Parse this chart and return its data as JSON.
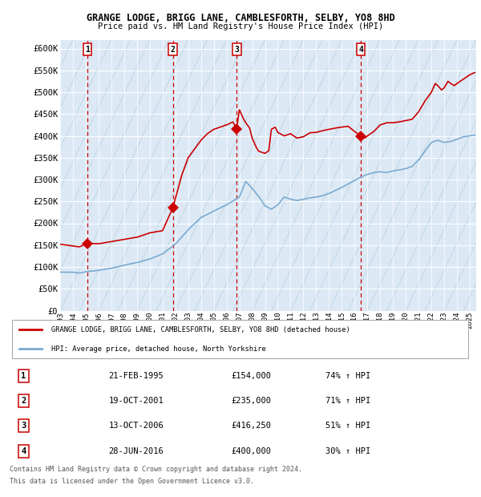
{
  "title1": "GRANGE LODGE, BRIGG LANE, CAMBLESFORTH, SELBY, YO8 8HD",
  "title2": "Price paid vs. HM Land Registry's House Price Index (HPI)",
  "bg_color": "#dce9f5",
  "hatch_color": "#c4d8ea",
  "ylim": [
    0,
    620000
  ],
  "yticks": [
    0,
    50000,
    100000,
    150000,
    200000,
    250000,
    300000,
    350000,
    400000,
    450000,
    500000,
    550000,
    600000
  ],
  "ytick_labels": [
    "£0",
    "£50K",
    "£100K",
    "£150K",
    "£200K",
    "£250K",
    "£300K",
    "£350K",
    "£400K",
    "£450K",
    "£500K",
    "£550K",
    "£600K"
  ],
  "xlim_start": 1993.0,
  "xlim_end": 2025.5,
  "xtick_years": [
    1993,
    1994,
    1995,
    1996,
    1997,
    1998,
    1999,
    2000,
    2001,
    2002,
    2003,
    2004,
    2005,
    2006,
    2007,
    2008,
    2009,
    2010,
    2011,
    2012,
    2013,
    2014,
    2015,
    2016,
    2017,
    2018,
    2019,
    2020,
    2021,
    2022,
    2023,
    2024,
    2025
  ],
  "sale_dates": [
    1995.13,
    2001.8,
    2006.79,
    2016.49
  ],
  "sale_prices": [
    154000,
    235000,
    416250,
    400000
  ],
  "sale_labels": [
    "1",
    "2",
    "3",
    "4"
  ],
  "legend_line1": "GRANGE LODGE, BRIGG LANE, CAMBLESFORTH, SELBY, YO8 8HD (detached house)",
  "legend_line2": "HPI: Average price, detached house, North Yorkshire",
  "table_rows": [
    [
      "1",
      "21-FEB-1995",
      "£154,000",
      "74% ↑ HPI"
    ],
    [
      "2",
      "19-OCT-2001",
      "£235,000",
      "71% ↑ HPI"
    ],
    [
      "3",
      "13-OCT-2006",
      "£416,250",
      "51% ↑ HPI"
    ],
    [
      "4",
      "28-JUN-2016",
      "£400,000",
      "30% ↑ HPI"
    ]
  ],
  "footer1": "Contains HM Land Registry data © Crown copyright and database right 2024.",
  "footer2": "This data is licensed under the Open Government Licence v3.0.",
  "red_line_color": "#cc0000",
  "blue_line_color": "#7aaad0",
  "dashed_line_color": "#cc0000",
  "hpi_knots": [
    [
      1993.0,
      88000
    ],
    [
      1994.0,
      88000
    ],
    [
      1994.5,
      86000
    ],
    [
      1995.0,
      89000
    ],
    [
      1996.0,
      92000
    ],
    [
      1997.0,
      97000
    ],
    [
      1998.0,
      104000
    ],
    [
      1999.0,
      110000
    ],
    [
      2000.0,
      118000
    ],
    [
      2001.0,
      130000
    ],
    [
      2002.0,
      152000
    ],
    [
      2003.0,
      185000
    ],
    [
      2004.0,
      213000
    ],
    [
      2005.0,
      228000
    ],
    [
      2006.0,
      242000
    ],
    [
      2007.0,
      260000
    ],
    [
      2007.5,
      296000
    ],
    [
      2008.0,
      280000
    ],
    [
      2008.5,
      262000
    ],
    [
      2009.0,
      240000
    ],
    [
      2009.5,
      232000
    ],
    [
      2010.0,
      242000
    ],
    [
      2010.5,
      260000
    ],
    [
      2011.0,
      255000
    ],
    [
      2011.5,
      252000
    ],
    [
      2012.0,
      255000
    ],
    [
      2012.5,
      258000
    ],
    [
      2013.0,
      260000
    ],
    [
      2013.5,
      263000
    ],
    [
      2014.0,
      268000
    ],
    [
      2014.5,
      275000
    ],
    [
      2015.0,
      282000
    ],
    [
      2015.5,
      290000
    ],
    [
      2016.0,
      298000
    ],
    [
      2016.5,
      306000
    ],
    [
      2017.0,
      312000
    ],
    [
      2017.5,
      316000
    ],
    [
      2018.0,
      318000
    ],
    [
      2018.5,
      316000
    ],
    [
      2019.0,
      320000
    ],
    [
      2019.5,
      322000
    ],
    [
      2020.0,
      325000
    ],
    [
      2020.5,
      330000
    ],
    [
      2021.0,
      345000
    ],
    [
      2021.5,
      365000
    ],
    [
      2022.0,
      385000
    ],
    [
      2022.5,
      390000
    ],
    [
      2023.0,
      385000
    ],
    [
      2023.5,
      387000
    ],
    [
      2024.0,
      392000
    ],
    [
      2024.5,
      398000
    ],
    [
      2025.0,
      400000
    ],
    [
      2025.4,
      402000
    ]
  ],
  "prop_knots": [
    [
      1993.0,
      152000
    ],
    [
      1994.0,
      148000
    ],
    [
      1994.5,
      146000
    ],
    [
      1995.13,
      154000
    ],
    [
      1996.0,
      153000
    ],
    [
      1997.0,
      158000
    ],
    [
      1998.0,
      163000
    ],
    [
      1999.0,
      168000
    ],
    [
      2000.0,
      178000
    ],
    [
      2001.0,
      183000
    ],
    [
      2001.8,
      235000
    ],
    [
      2002.5,
      310000
    ],
    [
      2003.0,
      350000
    ],
    [
      2003.5,
      370000
    ],
    [
      2004.0,
      390000
    ],
    [
      2004.5,
      405000
    ],
    [
      2005.0,
      415000
    ],
    [
      2005.5,
      420000
    ],
    [
      2006.0,
      425000
    ],
    [
      2006.5,
      432000
    ],
    [
      2006.79,
      416250
    ],
    [
      2007.0,
      460000
    ],
    [
      2007.3,
      440000
    ],
    [
      2007.5,
      430000
    ],
    [
      2007.8,
      418000
    ],
    [
      2008.0,
      395000
    ],
    [
      2008.3,
      375000
    ],
    [
      2008.5,
      365000
    ],
    [
      2009.0,
      360000
    ],
    [
      2009.3,
      366000
    ],
    [
      2009.5,
      415000
    ],
    [
      2009.8,
      420000
    ],
    [
      2010.0,
      408000
    ],
    [
      2010.5,
      400000
    ],
    [
      2011.0,
      405000
    ],
    [
      2011.5,
      395000
    ],
    [
      2012.0,
      398000
    ],
    [
      2012.5,
      407000
    ],
    [
      2013.0,
      408000
    ],
    [
      2013.5,
      412000
    ],
    [
      2014.0,
      415000
    ],
    [
      2014.5,
      418000
    ],
    [
      2015.0,
      420000
    ],
    [
      2015.5,
      422000
    ],
    [
      2016.0,
      410000
    ],
    [
      2016.49,
      400000
    ],
    [
      2016.8,
      395000
    ],
    [
      2017.0,
      400000
    ],
    [
      2017.5,
      410000
    ],
    [
      2018.0,
      425000
    ],
    [
      2018.5,
      430000
    ],
    [
      2019.0,
      430000
    ],
    [
      2019.5,
      432000
    ],
    [
      2020.0,
      435000
    ],
    [
      2020.5,
      438000
    ],
    [
      2021.0,
      455000
    ],
    [
      2021.5,
      480000
    ],
    [
      2022.0,
      500000
    ],
    [
      2022.3,
      520000
    ],
    [
      2022.5,
      515000
    ],
    [
      2022.8,
      505000
    ],
    [
      2023.0,
      510000
    ],
    [
      2023.3,
      525000
    ],
    [
      2023.5,
      520000
    ],
    [
      2023.8,
      515000
    ],
    [
      2024.0,
      520000
    ],
    [
      2024.5,
      530000
    ],
    [
      2025.0,
      540000
    ],
    [
      2025.4,
      545000
    ]
  ]
}
